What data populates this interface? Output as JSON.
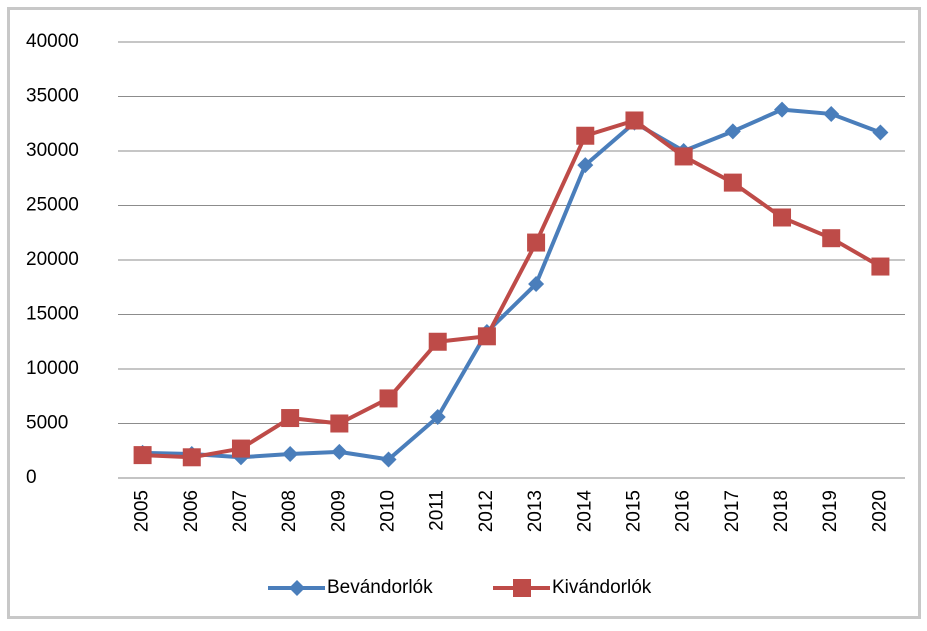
{
  "chart_data": {
    "type": "line",
    "categories": [
      "2005",
      "2006",
      "2007",
      "2008",
      "2009",
      "2010",
      "2011",
      "2012",
      "2013",
      "2014",
      "2015",
      "2016",
      "2017",
      "2018",
      "2019",
      "2020"
    ],
    "series": [
      {
        "name": "Bevándorlók",
        "color": "#4a7ebb",
        "marker": "diamond",
        "values": [
          2300,
          2200,
          1900,
          2200,
          2400,
          1700,
          5600,
          13400,
          17800,
          28700,
          32600,
          30000,
          31800,
          33800,
          33400,
          31700
        ]
      },
      {
        "name": "Kivándorlók",
        "color": "#be4b48",
        "marker": "square",
        "values": [
          2100,
          1900,
          2700,
          5500,
          5000,
          7300,
          12500,
          13000,
          21600,
          31400,
          32800,
          29500,
          27100,
          23900,
          22000,
          19400
        ]
      }
    ],
    "ylim": [
      0,
      40000
    ],
    "yticks": [
      0,
      5000,
      10000,
      15000,
      20000,
      25000,
      30000,
      35000,
      40000
    ],
    "grid": true,
    "legend": "bottom"
  }
}
